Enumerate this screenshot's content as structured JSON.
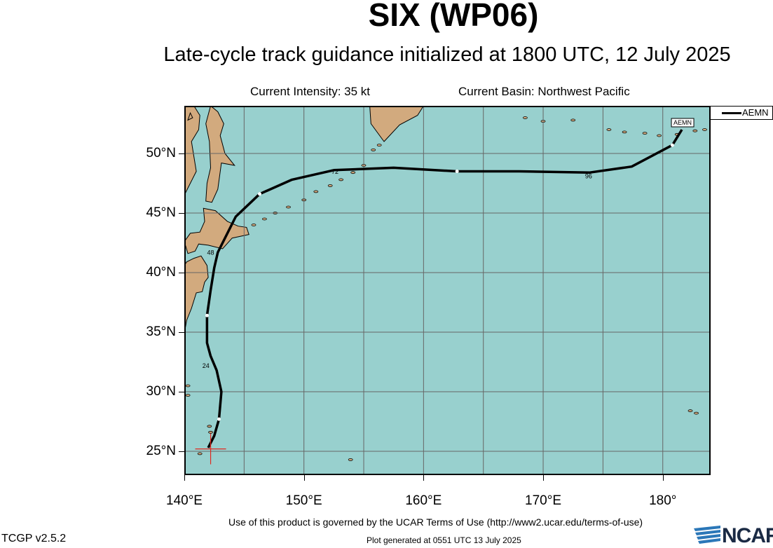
{
  "title": "SIX (WP06)",
  "subtitle": "Late-cycle track guidance initialized at 1800 UTC, 12 July 2025",
  "current_intensity": "Current Intensity: 35 kt",
  "current_basin": "Current Basin: Northwest Pacific",
  "legend": {
    "label": "AEMN"
  },
  "axes": {
    "lat_labels": [
      "25°N",
      "30°N",
      "35°N",
      "40°N",
      "45°N",
      "50°N"
    ],
    "lon_labels": [
      "140°E",
      "150°E",
      "160°E",
      "170°E",
      "180°"
    ]
  },
  "map_extent": {
    "lon_min": 140,
    "lon_max": 184,
    "lat_min": 23,
    "lat_max": 54
  },
  "colors": {
    "ocean": "#98d0ce",
    "land": "#d2aa7e",
    "track": "#000000",
    "grid": "#666666",
    "current_position": "#e0291f"
  },
  "track": {
    "model": "AEMN",
    "label": "AEMN",
    "points": [
      {
        "lon": 142.0,
        "lat": 25.3
      },
      {
        "lon": 142.5,
        "lat": 26.3
      },
      {
        "lon": 142.9,
        "lat": 27.7
      },
      {
        "lon": 143.1,
        "lat": 30.0
      },
      {
        "lon": 142.7,
        "lat": 31.8
      },
      {
        "lon": 142.2,
        "lat": 33.0
      },
      {
        "lon": 141.9,
        "lat": 34.1
      },
      {
        "lon": 141.9,
        "lat": 36.4
      },
      {
        "lon": 142.2,
        "lat": 38.5
      },
      {
        "lon": 142.5,
        "lat": 40.4
      },
      {
        "lon": 142.8,
        "lat": 41.7
      },
      {
        "lon": 144.3,
        "lat": 44.7
      },
      {
        "lon": 146.3,
        "lat": 46.6
      },
      {
        "lon": 149.0,
        "lat": 47.8
      },
      {
        "lon": 152.5,
        "lat": 48.6
      },
      {
        "lon": 157.5,
        "lat": 48.8
      },
      {
        "lon": 162.8,
        "lat": 48.5
      },
      {
        "lon": 168.0,
        "lat": 48.5
      },
      {
        "lon": 173.9,
        "lat": 48.4
      },
      {
        "lon": 177.4,
        "lat": 48.9
      },
      {
        "lon": 180.8,
        "lat": 50.7
      },
      {
        "lon": 181.6,
        "lat": 52.0
      }
    ],
    "six_hour_markers": [
      {
        "lon": 142.9,
        "lat": 27.7
      },
      {
        "lon": 141.9,
        "lat": 36.4
      },
      {
        "lon": 146.3,
        "lat": 46.6
      },
      {
        "lon": 162.8,
        "lat": 48.5
      },
      {
        "lon": 180.8,
        "lat": 50.7
      }
    ],
    "hour_labels": [
      {
        "text": "24",
        "lon": 141.8,
        "lat": 32.0
      },
      {
        "text": "48",
        "lon": 142.2,
        "lat": 41.5
      },
      {
        "text": "72",
        "lon": 152.6,
        "lat": 48.3
      },
      {
        "text": "96",
        "lon": 173.8,
        "lat": 47.9
      }
    ]
  },
  "current_position": {
    "lon": 142.2,
    "lat": 25.2
  },
  "footer": {
    "terms": "Use of this product is governed by the UCAR Terms of Use (http://www2.ucar.edu/terms-of-use)",
    "generated": "Plot generated at 0551 UTC   13 July 2025",
    "version": "TCGP v2.5.2",
    "logo_text": "NCAR"
  }
}
